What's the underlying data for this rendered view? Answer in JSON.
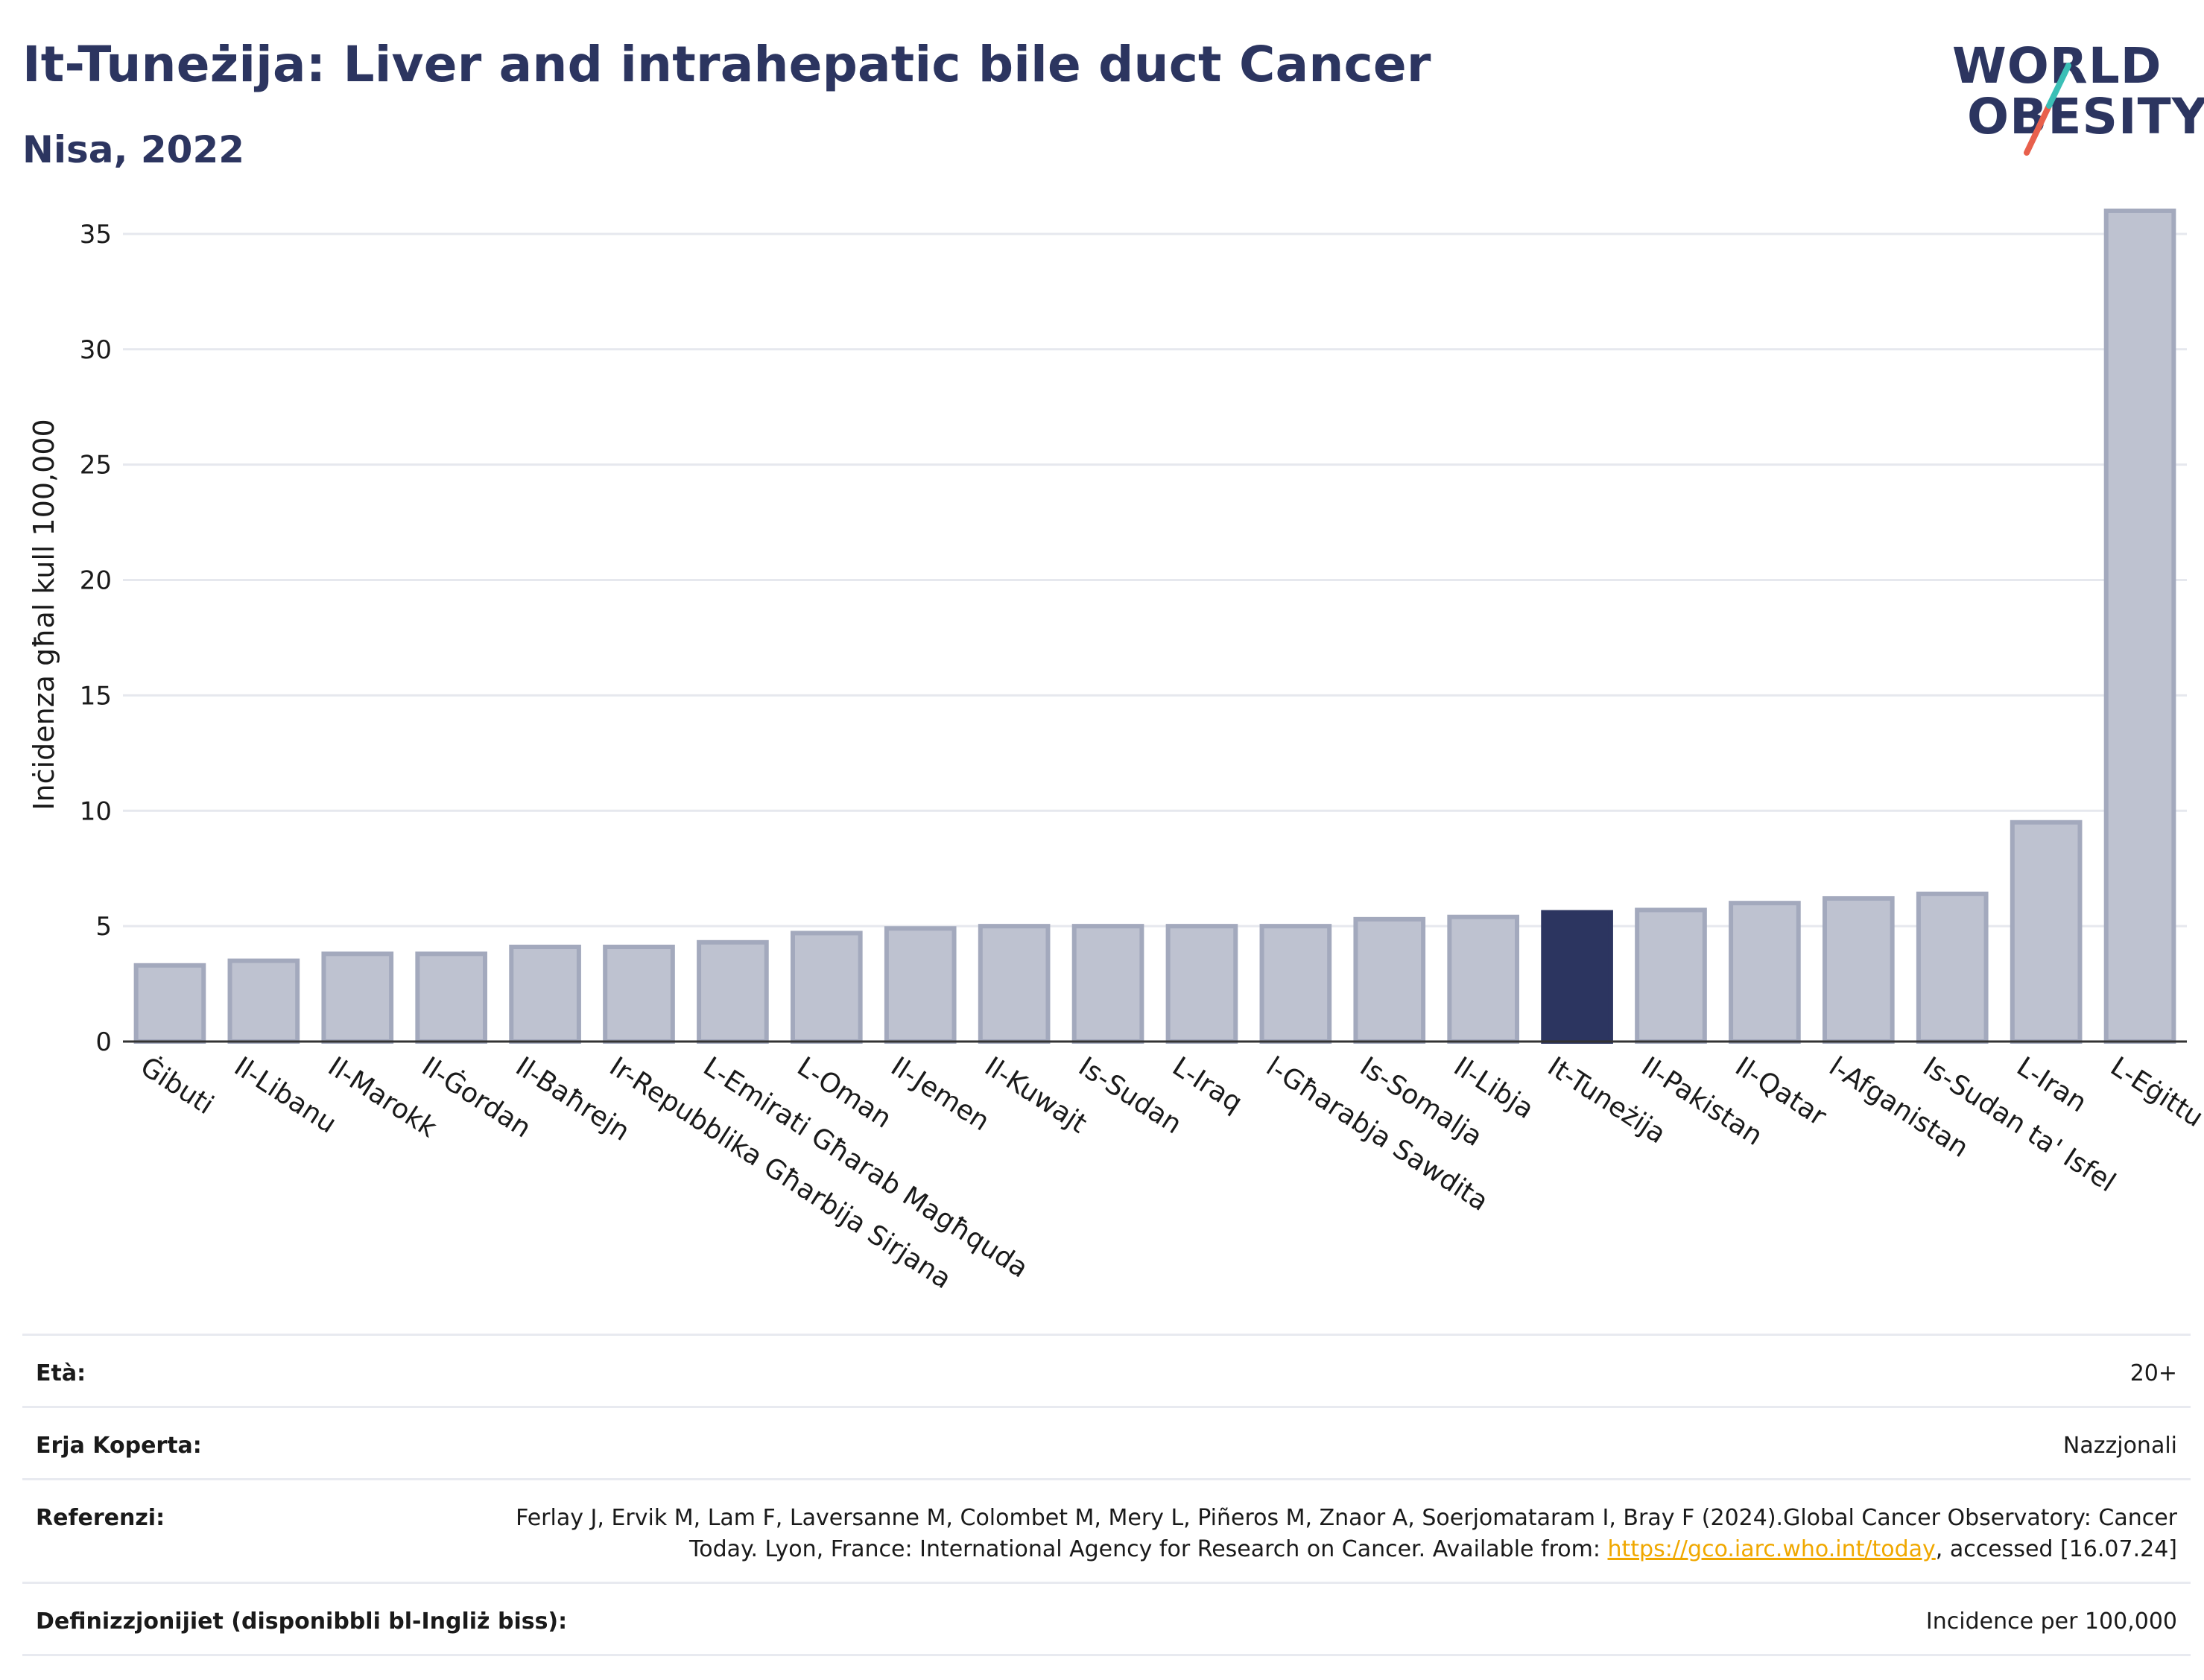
{
  "header": {
    "title": "It-Tuneżija: Liver and intrahepatic bile duct Cancer",
    "subtitle": "Nisa, 2022"
  },
  "logo": {
    "line1": "WORLD",
    "line2": "OBESITY",
    "accent_teal": "#3bbfb6",
    "accent_red": "#e8604c"
  },
  "chart_data": {
    "type": "bar",
    "ylabel": "Inċidenza għal kull 100,000",
    "ylim": [
      0,
      37
    ],
    "yticks": [
      0,
      5,
      10,
      15,
      20,
      25,
      30,
      35
    ],
    "grid": true,
    "categories": [
      "Ġibuti",
      "Il-Libanu",
      "Il-Marokk",
      "Il-Ġordan",
      "Il-Baħrejn",
      "Ir-Repubblika Għarbija Sirjana",
      "L-Emirati Għarab Magħquda",
      "L-Oman",
      "Il-Jemen",
      "Il-Kuwajt",
      "Is-Sudan",
      "L-Iraq",
      "l-Għarabja Sawdita",
      "Is-Somalja",
      "Il-Libja",
      "It-Tuneżija",
      "Il-Pakistan",
      "Il-Qatar",
      "l-Afganistan",
      "Is-Sudan ta' Isfel",
      "L-Iran",
      "L-Eġittu"
    ],
    "values": [
      3.3,
      3.5,
      3.8,
      3.8,
      4.1,
      4.1,
      4.3,
      4.7,
      4.9,
      5.0,
      5.0,
      5.0,
      5.0,
      5.3,
      5.4,
      5.6,
      5.7,
      6.0,
      6.2,
      6.4,
      9.5,
      36.0
    ],
    "highlight": "It-Tuneżija",
    "colors": {
      "bar": "#bec2d0",
      "bar_edge": "#a3a9bd",
      "highlight": "#2c3560"
    }
  },
  "footer": {
    "rows": [
      {
        "label": "Età:",
        "value": "20+"
      },
      {
        "label": "Erja Koperta:",
        "value": "Nazzjonali"
      },
      {
        "label": "Referenzi:",
        "value_pre": "Ferlay J, Ervik M, Lam F, Laversanne M, Colombet M, Mery L, Piñeros M, Znaor A, Soerjomataram I, Bray F (2024).Global Cancer Observatory: Cancer Today. Lyon, France: International Agency for Research on Cancer. Available from: ",
        "link": "https://gco.iarc.who.int/today",
        "value_post": ", accessed [16.07.24]"
      },
      {
        "label": "Definizzjonijiet (disponibbli bl-Ingliż biss):",
        "value": "Incidence per 100,000"
      }
    ]
  }
}
